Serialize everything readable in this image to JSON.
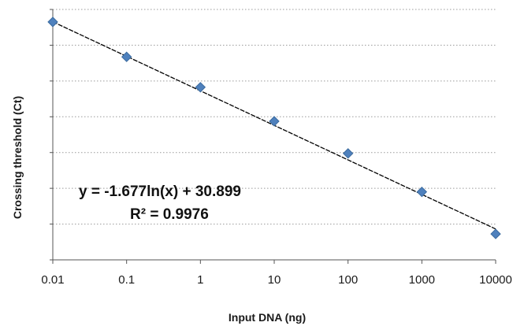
{
  "chart_data": {
    "type": "scatter",
    "xlabel": "Input DNA (ng)",
    "ylabel": "Crossing threshold (Ct)",
    "x_scale": "log",
    "x_ticks": [
      "0.01",
      "0.1",
      "1",
      "10",
      "100",
      "1000",
      "10000"
    ],
    "xlim": [
      0.01,
      10000
    ],
    "ylim": [
      12,
      40
    ],
    "y_tick_labels_shown": false,
    "grid": "horizontal dotted",
    "legend": "none",
    "points": [
      {
        "x": 0.01,
        "y": 38.6
      },
      {
        "x": 0.1,
        "y": 34.7
      },
      {
        "x": 1,
        "y": 31.3
      },
      {
        "x": 10,
        "y": 27.5
      },
      {
        "x": 100,
        "y": 23.9
      },
      {
        "x": 1000,
        "y": 19.6
      },
      {
        "x": 10000,
        "y": 14.9
      }
    ],
    "trendline": {
      "type": "logarithmic",
      "slope": -1.677,
      "intercept": 30.899
    },
    "annotations": [
      "y = -1.677ln(x) + 30.899",
      "R² = 0.9976"
    ],
    "colors": {
      "marker": "#4f81bd",
      "marker_stroke": "#3a6a9e",
      "trendline": "#000000",
      "grid": "#9a9a9a"
    }
  }
}
